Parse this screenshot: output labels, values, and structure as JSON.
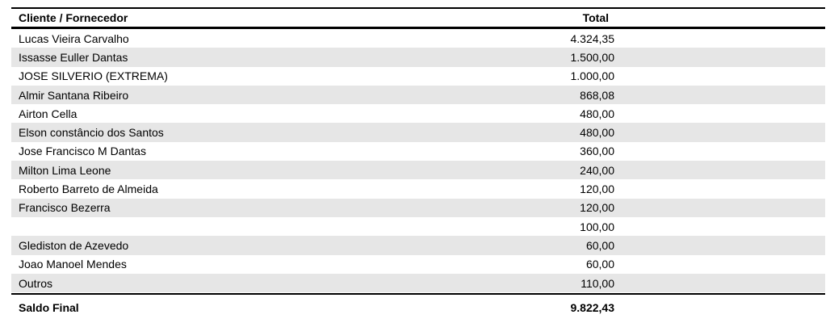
{
  "header": {
    "name_label": "Cliente / Fornecedor",
    "total_label": "Total"
  },
  "rows": [
    {
      "name": "Lucas Vieira Carvalho",
      "total": "4.324,35"
    },
    {
      "name": "Issasse Euller Dantas",
      "total": "1.500,00"
    },
    {
      "name": "JOSE SILVERIO (EXTREMA)",
      "total": "1.000,00"
    },
    {
      "name": "Almir Santana Ribeiro",
      "total": "868,08"
    },
    {
      "name": "Airton Cella",
      "total": "480,00"
    },
    {
      "name": "Elson constâncio dos Santos",
      "total": "480,00"
    },
    {
      "name": "Jose Francisco M Dantas",
      "total": "360,00"
    },
    {
      "name": "Milton Lima Leone",
      "total": "240,00"
    },
    {
      "name": "Roberto Barreto de Almeida",
      "total": "120,00"
    },
    {
      "name": "Francisco Bezerra",
      "total": "120,00"
    },
    {
      "name": "",
      "total": "100,00"
    },
    {
      "name": "Glediston de Azevedo",
      "total": "60,00"
    },
    {
      "name": "Joao Manoel Mendes",
      "total": "60,00"
    },
    {
      "name": "Outros",
      "total": "110,00"
    }
  ],
  "footer": {
    "label": "Saldo Final",
    "total": "9.822,43"
  }
}
